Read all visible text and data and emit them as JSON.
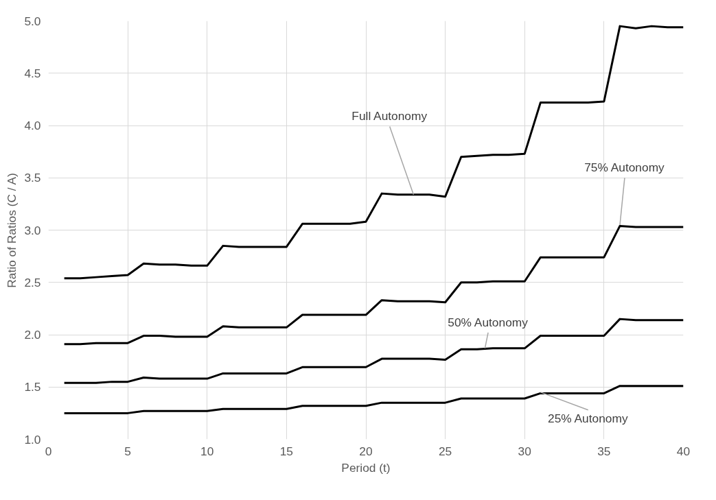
{
  "chart_data": {
    "type": "line",
    "xlabel": "Period (t)",
    "ylabel": "Ratio of Ratios (C / A)",
    "x": [
      1,
      2,
      3,
      4,
      5,
      6,
      7,
      8,
      9,
      10,
      11,
      12,
      13,
      14,
      15,
      16,
      17,
      18,
      19,
      20,
      21,
      22,
      23,
      24,
      25,
      26,
      27,
      28,
      29,
      30,
      31,
      32,
      33,
      34,
      35,
      36,
      37,
      38,
      39,
      40
    ],
    "series": [
      {
        "color": "#000000",
        "values": [
          2.54,
          2.54,
          2.55,
          2.56,
          2.57,
          2.68,
          2.67,
          2.67,
          2.66,
          2.66,
          2.85,
          2.84,
          2.84,
          2.84,
          2.84,
          3.06,
          3.06,
          3.06,
          3.06,
          3.08,
          3.35,
          3.34,
          3.34,
          3.34,
          3.32,
          3.7,
          3.71,
          3.72,
          3.72,
          3.73,
          4.22,
          4.22,
          4.22,
          4.22,
          4.23,
          4.95,
          4.93,
          4.95,
          4.94,
          4.94
        ]
      },
      {
        "color": "#000000",
        "values": [
          1.91,
          1.91,
          1.92,
          1.92,
          1.92,
          1.99,
          1.99,
          1.98,
          1.98,
          1.98,
          2.08,
          2.07,
          2.07,
          2.07,
          2.07,
          2.19,
          2.19,
          2.19,
          2.19,
          2.19,
          2.33,
          2.32,
          2.32,
          2.32,
          2.31,
          2.5,
          2.5,
          2.51,
          2.51,
          2.51,
          2.74,
          2.74,
          2.74,
          2.74,
          2.74,
          3.04,
          3.03,
          3.03,
          3.03,
          3.03
        ]
      },
      {
        "color": "#000000",
        "values": [
          1.54,
          1.54,
          1.54,
          1.55,
          1.55,
          1.59,
          1.58,
          1.58,
          1.58,
          1.58,
          1.63,
          1.63,
          1.63,
          1.63,
          1.63,
          1.69,
          1.69,
          1.69,
          1.69,
          1.69,
          1.77,
          1.77,
          1.77,
          1.77,
          1.76,
          1.86,
          1.86,
          1.87,
          1.87,
          1.87,
          1.99,
          1.99,
          1.99,
          1.99,
          1.99,
          2.15,
          2.14,
          2.14,
          2.14,
          2.14
        ]
      },
      {
        "color": "#000000",
        "values": [
          1.25,
          1.25,
          1.25,
          1.25,
          1.25,
          1.27,
          1.27,
          1.27,
          1.27,
          1.27,
          1.29,
          1.29,
          1.29,
          1.29,
          1.29,
          1.32,
          1.32,
          1.32,
          1.32,
          1.32,
          1.35,
          1.35,
          1.35,
          1.35,
          1.35,
          1.39,
          1.39,
          1.39,
          1.39,
          1.39,
          1.44,
          1.44,
          1.44,
          1.44,
          1.44,
          1.51,
          1.51,
          1.51,
          1.51,
          1.51
        ]
      }
    ],
    "annotations": [
      {
        "text": "Full Autonomy",
        "x": 23,
        "y": 3.34
      },
      {
        "text": "75% Autonomy",
        "x": 36,
        "y": 3.05
      },
      {
        "text": "50% Autonomy",
        "x": 27.5,
        "y": 1.87
      },
      {
        "text": "25% Autonomy",
        "x": 31,
        "y": 1.45
      }
    ],
    "xlim": [
      0,
      40
    ],
    "xticks": [
      0,
      5,
      10,
      15,
      20,
      25,
      30,
      35,
      40
    ],
    "ylim": [
      1.0,
      5.0
    ],
    "yticks": [
      {
        "value": 1.0,
        "label": "1.0"
      },
      {
        "value": 1.5,
        "label": "1.5"
      },
      {
        "value": 2.0,
        "label": "2.0"
      },
      {
        "value": 2.5,
        "label": "2.5"
      },
      {
        "value": 3.0,
        "label": "3.0"
      },
      {
        "value": 3.5,
        "label": "3.5"
      },
      {
        "value": 4.0,
        "label": "4.0"
      },
      {
        "value": 4.5,
        "label": "4.5"
      },
      {
        "value": 5.0,
        "label": "5.0"
      }
    ],
    "grid": true,
    "marker": "none",
    "line_style": "solid"
  }
}
